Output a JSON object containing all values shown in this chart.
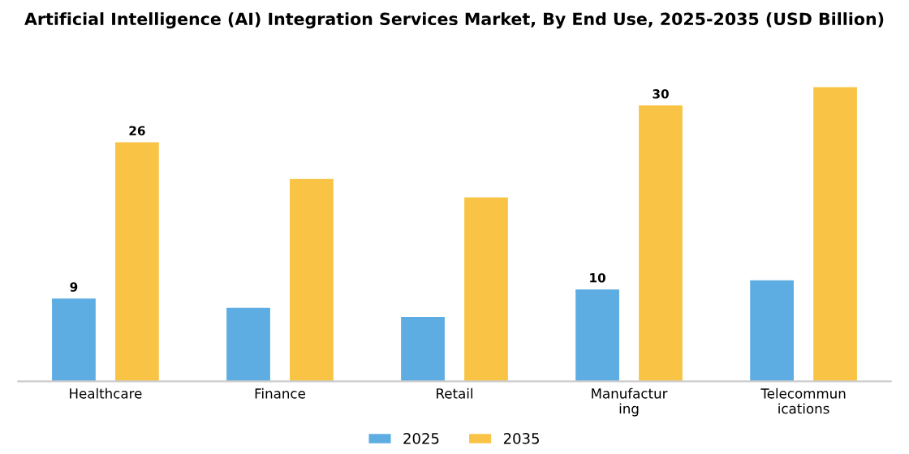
{
  "chart_data": {
    "type": "bar",
    "title": "Artificial Intelligence (AI) Integration Services Market, By End Use, 2025-2035 (USD Billion)",
    "categories": [
      "Healthcare",
      "Finance",
      "Retail",
      "Manufactur\ning",
      "Telecommun\nications"
    ],
    "series": [
      {
        "name": "2025",
        "color": "#5dade2",
        "values": [
          9,
          8,
          7,
          10,
          11
        ],
        "value_labels": [
          "9",
          null,
          null,
          "10",
          null
        ]
      },
      {
        "name": "2035",
        "color": "#f9c445",
        "values": [
          26,
          22,
          20,
          30,
          32
        ],
        "value_labels": [
          "26",
          null,
          null,
          "30",
          null
        ]
      }
    ],
    "legend": "bottom",
    "grid": false,
    "tick_labels": "x"
  }
}
